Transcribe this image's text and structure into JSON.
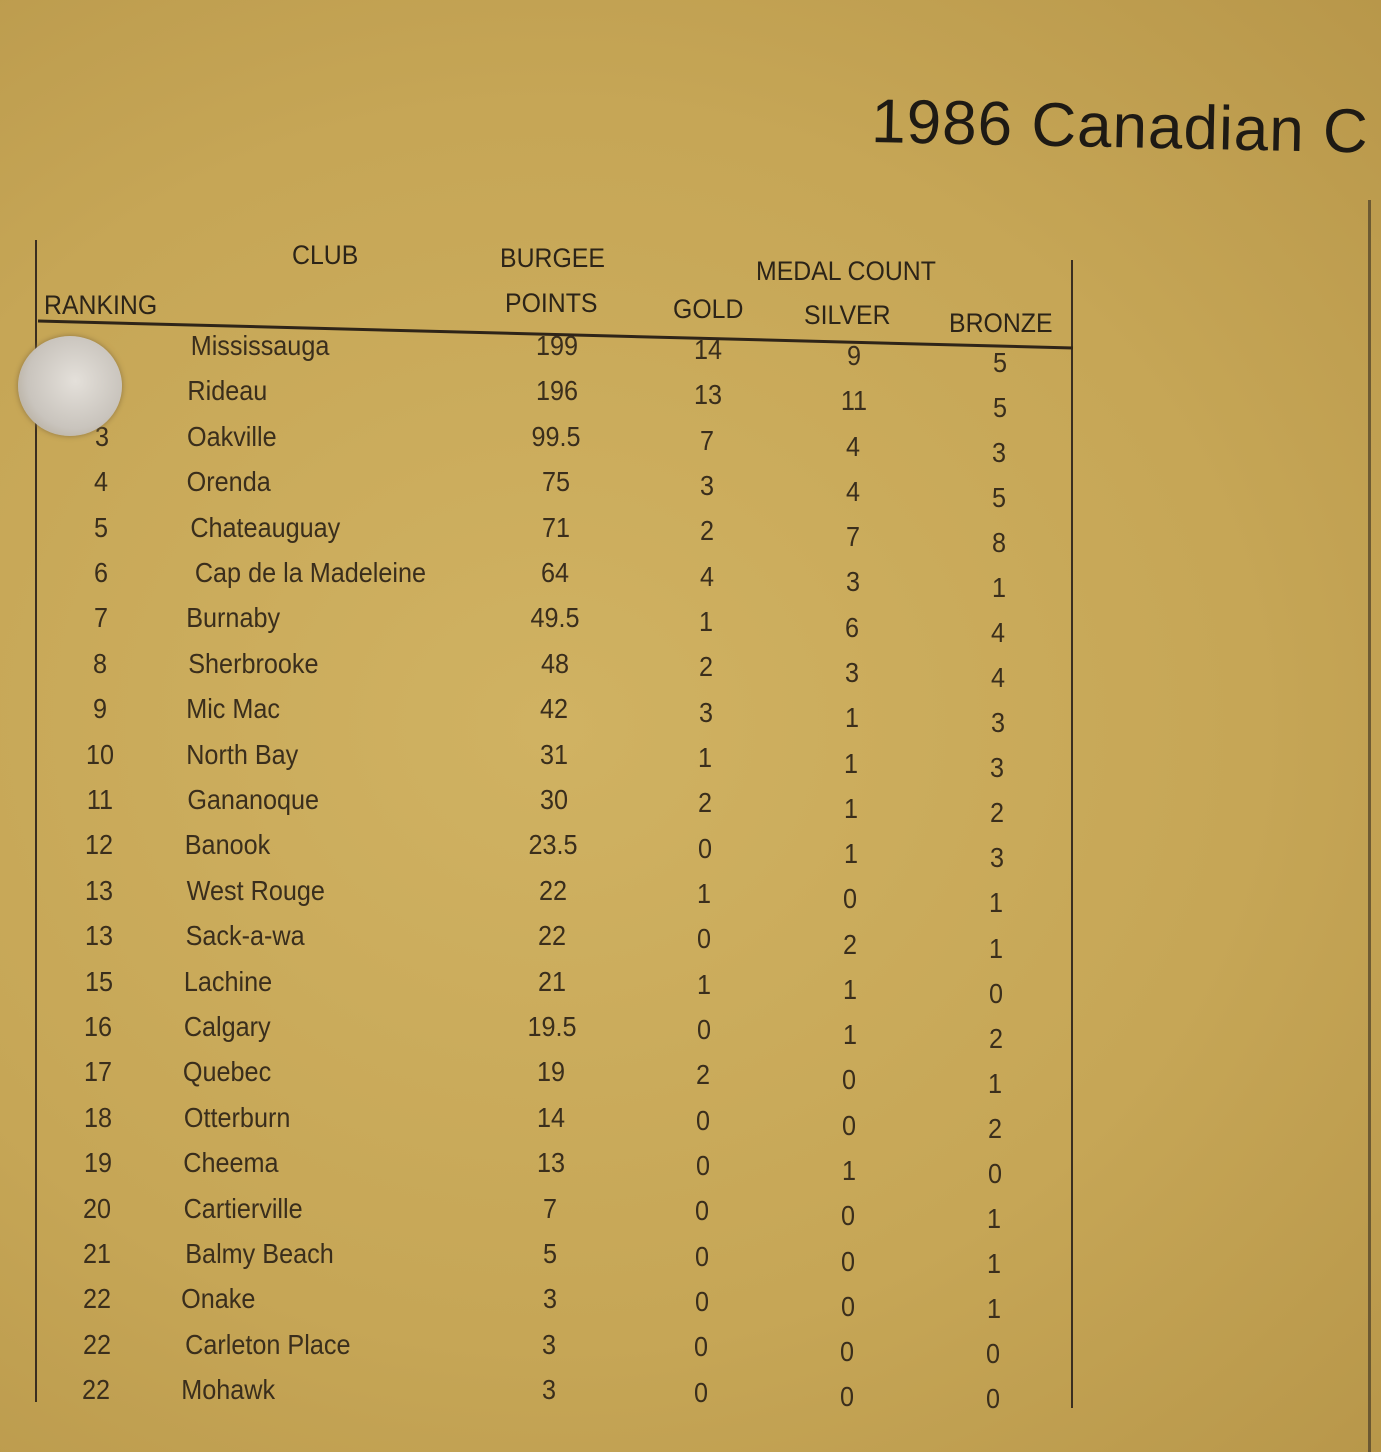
{
  "title": "1986 Canadian C",
  "table": {
    "headers": {
      "ranking": "RANKING",
      "club": "CLUB",
      "burgee_points_line1": "BURGEE",
      "burgee_points_line2": "POINTS",
      "medal_count": "MEDAL COUNT",
      "gold": "GOLD",
      "silver": "SILVER",
      "bronze": "BRONZE"
    },
    "rows": [
      {
        "rank": "",
        "club": "Mississauga",
        "points": "199",
        "gold": "14",
        "silver": "9",
        "bronze": "5"
      },
      {
        "rank": "",
        "club": "Rideau",
        "points": "196",
        "gold": "13",
        "silver": "11",
        "bronze": "5"
      },
      {
        "rank": "3",
        "club": "Oakville",
        "points": "99.5",
        "gold": "7",
        "silver": "4",
        "bronze": "3"
      },
      {
        "rank": "4",
        "club": "Orenda",
        "points": "75",
        "gold": "3",
        "silver": "4",
        "bronze": "5"
      },
      {
        "rank": "5",
        "club": "Chateauguay",
        "points": "71",
        "gold": "2",
        "silver": "7",
        "bronze": "8"
      },
      {
        "rank": "6",
        "club": "Cap de la Madeleine",
        "points": "64",
        "gold": "4",
        "silver": "3",
        "bronze": "1"
      },
      {
        "rank": "7",
        "club": "Burnaby",
        "points": "49.5",
        "gold": "1",
        "silver": "6",
        "bronze": "4"
      },
      {
        "rank": "8",
        "club": "Sherbrooke",
        "points": "48",
        "gold": "2",
        "silver": "3",
        "bronze": "4"
      },
      {
        "rank": "9",
        "club": "Mic Mac",
        "points": "42",
        "gold": "3",
        "silver": "1",
        "bronze": "3"
      },
      {
        "rank": "10",
        "club": "North Bay",
        "points": "31",
        "gold": "1",
        "silver": "1",
        "bronze": "3"
      },
      {
        "rank": "11",
        "club": "Gananoque",
        "points": "30",
        "gold": "2",
        "silver": "1",
        "bronze": "2"
      },
      {
        "rank": "12",
        "club": "Banook",
        "points": "23.5",
        "gold": "0",
        "silver": "1",
        "bronze": "3"
      },
      {
        "rank": "13",
        "club": "West Rouge",
        "points": "22",
        "gold": "1",
        "silver": "0",
        "bronze": "1"
      },
      {
        "rank": "13",
        "club": "Sack-a-wa",
        "points": "22",
        "gold": "0",
        "silver": "2",
        "bronze": "1"
      },
      {
        "rank": "15",
        "club": "Lachine",
        "points": "21",
        "gold": "1",
        "silver": "1",
        "bronze": "0"
      },
      {
        "rank": "16",
        "club": "Calgary",
        "points": "19.5",
        "gold": "0",
        "silver": "1",
        "bronze": "2"
      },
      {
        "rank": "17",
        "club": "Quebec",
        "points": "19",
        "gold": "2",
        "silver": "0",
        "bronze": "1"
      },
      {
        "rank": "18",
        "club": "Otterburn",
        "points": "14",
        "gold": "0",
        "silver": "0",
        "bronze": "2"
      },
      {
        "rank": "19",
        "club": "Cheema",
        "points": "13",
        "gold": "0",
        "silver": "1",
        "bronze": "0"
      },
      {
        "rank": "20",
        "club": "Cartierville",
        "points": "7",
        "gold": "0",
        "silver": "0",
        "bronze": "1"
      },
      {
        "rank": "21",
        "club": "Balmy Beach",
        "points": "5",
        "gold": "0",
        "silver": "0",
        "bronze": "1"
      },
      {
        "rank": "22",
        "club": "Onake",
        "points": "3",
        "gold": "0",
        "silver": "0",
        "bronze": "1"
      },
      {
        "rank": "22",
        "club": "Carleton Place",
        "points": "3",
        "gold": "0",
        "silver": "0",
        "bronze": "0"
      },
      {
        "rank": "22",
        "club": "Mohawk",
        "points": "3",
        "gold": "0",
        "silver": "0",
        "bronze": "0"
      }
    ]
  }
}
